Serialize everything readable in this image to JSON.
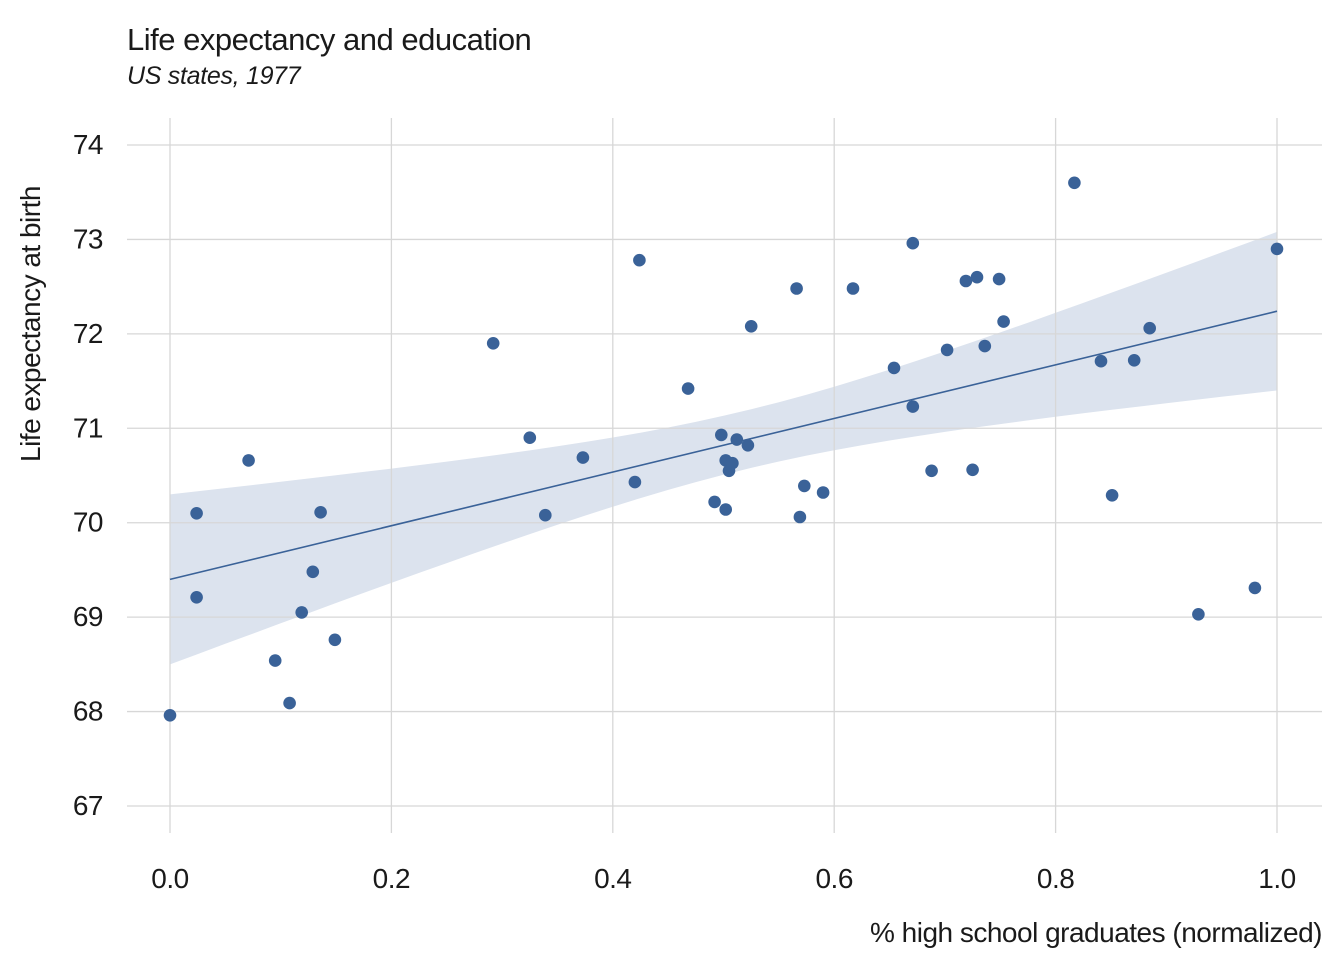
{
  "header": {
    "title": "Life expectancy and education",
    "subtitle": "US states, 1977"
  },
  "axes": {
    "x": {
      "label": "% high school graduates (normalized)",
      "tick_labels": [
        "0.0",
        "0.2",
        "0.4",
        "0.6",
        "0.8",
        "1.0"
      ],
      "tick_values": [
        0.0,
        0.2,
        0.4,
        0.6,
        0.8,
        1.0
      ],
      "range": [
        0.0,
        1.0
      ]
    },
    "y": {
      "label": "Life expectancy at birth",
      "tick_labels": [
        "67",
        "68",
        "69",
        "70",
        "71",
        "72",
        "73",
        "74"
      ],
      "tick_values": [
        67,
        68,
        69,
        70,
        71,
        72,
        73,
        74
      ],
      "range": [
        67,
        74
      ]
    }
  },
  "colors": {
    "point": "#3a6298",
    "trend_line": "#3a6298",
    "ci_band": "#dce3ee",
    "gridline": "#d7d7d7",
    "text": "#1a1a1a",
    "background": "#ffffff"
  },
  "chart_data": {
    "type": "scatter",
    "title": "Life expectancy and education",
    "subtitle": "US states, 1977",
    "xlabel": "% high school graduates (normalized)",
    "ylabel": "Life expectancy at birth",
    "xlim": [
      0.0,
      1.0
    ],
    "ylim": [
      67,
      74
    ],
    "grid": true,
    "legend": "none",
    "points": [
      [
        0.0,
        67.96
      ],
      [
        0.024,
        70.1
      ],
      [
        0.024,
        69.21
      ],
      [
        0.071,
        70.66
      ],
      [
        0.095,
        68.54
      ],
      [
        0.108,
        68.09
      ],
      [
        0.119,
        69.05
      ],
      [
        0.129,
        69.48
      ],
      [
        0.136,
        70.11
      ],
      [
        0.149,
        68.76
      ],
      [
        0.292,
        71.9
      ],
      [
        0.325,
        70.9
      ],
      [
        0.339,
        70.08
      ],
      [
        0.373,
        70.69
      ],
      [
        0.42,
        70.43
      ],
      [
        0.424,
        72.78
      ],
      [
        0.468,
        71.42
      ],
      [
        0.492,
        70.22
      ],
      [
        0.498,
        70.93
      ],
      [
        0.502,
        70.14
      ],
      [
        0.502,
        70.66
      ],
      [
        0.505,
        70.55
      ],
      [
        0.508,
        70.63
      ],
      [
        0.512,
        70.88
      ],
      [
        0.522,
        70.82
      ],
      [
        0.525,
        72.08
      ],
      [
        0.566,
        72.48
      ],
      [
        0.569,
        70.06
      ],
      [
        0.573,
        70.39
      ],
      [
        0.59,
        70.32
      ],
      [
        0.617,
        72.48
      ],
      [
        0.654,
        71.64
      ],
      [
        0.671,
        72.96
      ],
      [
        0.671,
        71.23
      ],
      [
        0.688,
        70.55
      ],
      [
        0.702,
        71.83
      ],
      [
        0.719,
        72.56
      ],
      [
        0.725,
        70.56
      ],
      [
        0.729,
        72.6
      ],
      [
        0.736,
        71.87
      ],
      [
        0.749,
        72.58
      ],
      [
        0.753,
        72.13
      ],
      [
        0.817,
        73.6
      ],
      [
        0.841,
        71.71
      ],
      [
        0.851,
        70.29
      ],
      [
        0.871,
        71.72
      ],
      [
        0.885,
        72.06
      ],
      [
        0.929,
        69.03
      ],
      [
        0.98,
        69.31
      ],
      [
        1.0,
        72.9
      ]
    ],
    "trend": {
      "kind": "linear_fit_with_ci",
      "line": {
        "intercept": 69.4,
        "slope": 2.84,
        "x_start": 0.0,
        "x_end": 1.0
      },
      "ci_band": {
        "center_x": 0.52,
        "half_width_at_center": 0.31,
        "growth_per_unit_x": 1.625,
        "value_at_x0": {
          "upper": 70.3,
          "lower": 68.5
        },
        "value_at_x1": {
          "upper": 73.06,
          "lower": 71.4
        }
      }
    }
  }
}
